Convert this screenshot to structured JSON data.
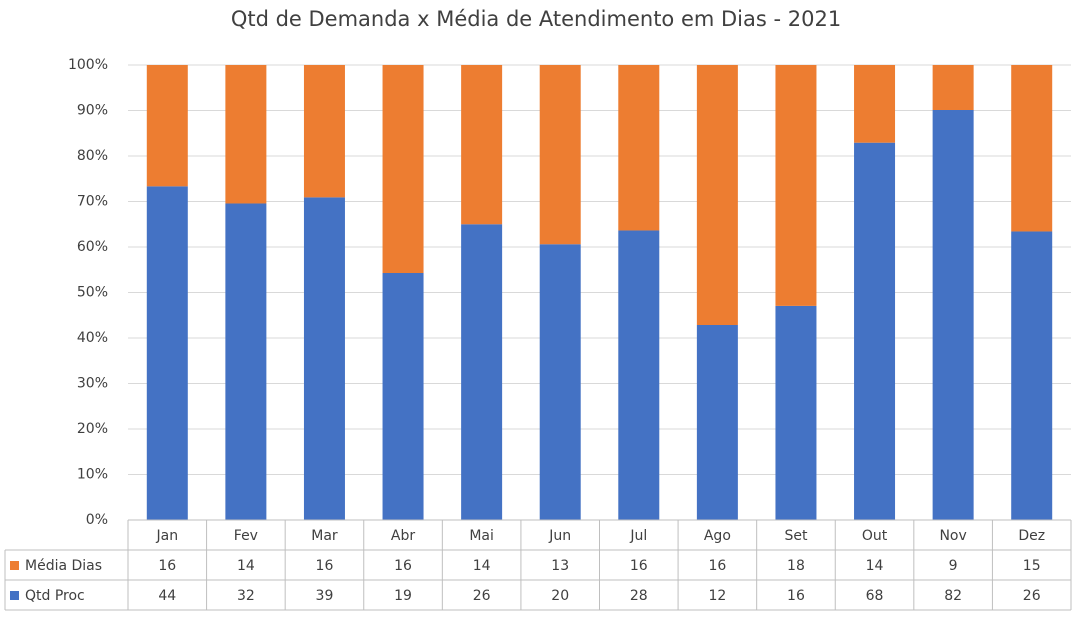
{
  "chart_data": {
    "type": "bar",
    "stacking": "percent",
    "title": "Qtd de Demanda x Média de Atendimento em Dias - 2021",
    "categories": [
      "Jan",
      "Fev",
      "Mar",
      "Abr",
      "Mai",
      "Jun",
      "Jul",
      "Ago",
      "Set",
      "Out",
      "Nov",
      "Dez"
    ],
    "series": [
      {
        "name": "Média Dias",
        "color": "#ed7d31",
        "values": [
          16,
          14,
          16,
          16,
          14,
          13,
          16,
          16,
          18,
          14,
          9,
          15
        ]
      },
      {
        "name": "Qtd Proc",
        "color": "#4472c4",
        "values": [
          44,
          32,
          39,
          19,
          26,
          20,
          28,
          12,
          16,
          68,
          82,
          26
        ]
      }
    ],
    "ylim": [
      0,
      100
    ],
    "yticks": [
      {
        "value": 0,
        "label": "0%"
      },
      {
        "value": 10,
        "label": "10%"
      },
      {
        "value": 20,
        "label": "20%"
      },
      {
        "value": 30,
        "label": "30%"
      },
      {
        "value": 40,
        "label": "40%"
      },
      {
        "value": 50,
        "label": "50%"
      },
      {
        "value": 60,
        "label": "60%"
      },
      {
        "value": 70,
        "label": "70%"
      },
      {
        "value": 80,
        "label": "80%"
      },
      {
        "value": 90,
        "label": "90%"
      },
      {
        "value": 100,
        "label": "100%"
      }
    ],
    "grid": true,
    "data_table": true
  }
}
